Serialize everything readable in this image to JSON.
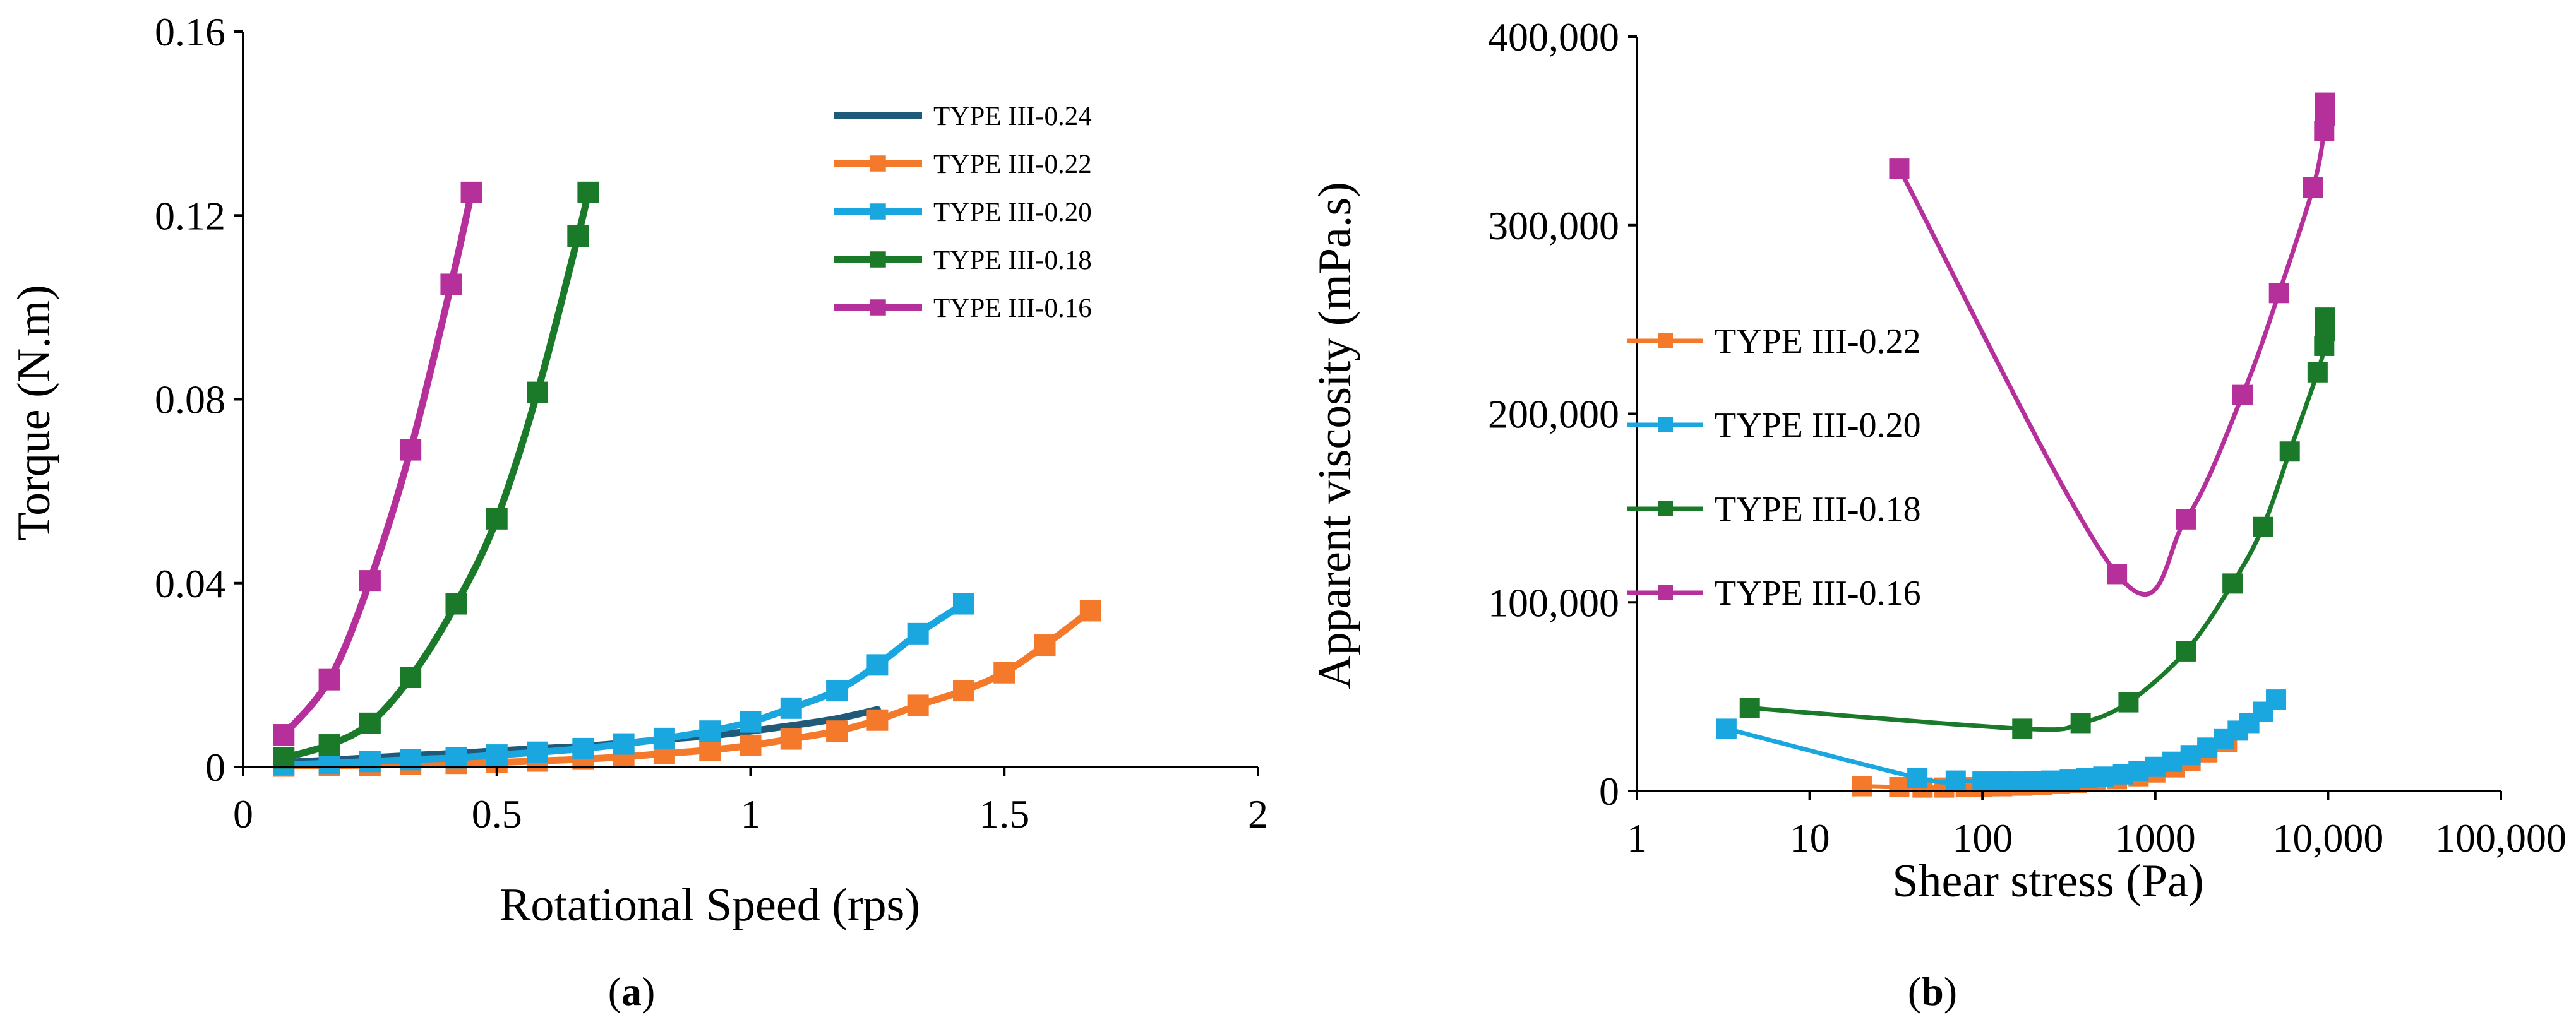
{
  "chart_data": [
    {
      "id": "a",
      "type": "line",
      "caption": "(a)",
      "caption_letter": "a",
      "xlabel": "Rotational Speed (rps)",
      "ylabel": "Torque (N.m)",
      "xlim": [
        0,
        2
      ],
      "ylim": [
        0,
        0.16
      ],
      "xticks": [
        0,
        0.5,
        1,
        1.5,
        2
      ],
      "xtick_labels": [
        "0",
        "0.5",
        "1",
        "1.5",
        "2"
      ],
      "yticks": [
        0,
        0.04,
        0.08,
        0.12,
        0.16
      ],
      "ytick_labels": [
        "0",
        "0.04",
        "0.08",
        "0.12",
        "0.16"
      ],
      "grid": false,
      "legend_position": "top-right",
      "series": [
        {
          "name": "TYPE III-0.24",
          "color": "#1f5a7a",
          "marker": "none",
          "x": [
            0.08,
            0.17,
            0.25,
            0.33,
            0.42,
            0.5,
            0.58,
            0.67,
            0.75,
            0.83,
            0.92,
            1.0,
            1.08,
            1.17,
            1.25
          ],
          "y": [
            0.001,
            0.0015,
            0.002,
            0.0025,
            0.003,
            0.0035,
            0.004,
            0.0045,
            0.0052,
            0.006,
            0.0068,
            0.0078,
            0.009,
            0.0105,
            0.0125
          ]
        },
        {
          "name": "TYPE III-0.22",
          "color": "#f4792a",
          "marker": "square",
          "x": [
            0.08,
            0.17,
            0.25,
            0.33,
            0.42,
            0.5,
            0.58,
            0.67,
            0.75,
            0.83,
            0.92,
            1.0,
            1.08,
            1.17,
            1.25,
            1.33,
            1.42,
            1.5,
            1.58,
            1.67
          ],
          "y": [
            0.0002,
            0.0003,
            0.0004,
            0.0006,
            0.0008,
            0.001,
            0.0013,
            0.0017,
            0.0022,
            0.0029,
            0.0037,
            0.0047,
            0.0061,
            0.0078,
            0.0102,
            0.0134,
            0.0166,
            0.0205,
            0.0265,
            0.034
          ]
        },
        {
          "name": "TYPE III-0.20",
          "color": "#1aa6de",
          "marker": "square",
          "x": [
            0.08,
            0.17,
            0.25,
            0.33,
            0.42,
            0.5,
            0.58,
            0.67,
            0.75,
            0.83,
            0.92,
            1.0,
            1.08,
            1.17,
            1.25,
            1.33,
            1.42
          ],
          "y": [
            0.0005,
            0.0008,
            0.0012,
            0.0016,
            0.002,
            0.0026,
            0.0032,
            0.004,
            0.005,
            0.0062,
            0.0078,
            0.0098,
            0.0128,
            0.0166,
            0.0222,
            0.029,
            0.0355
          ]
        },
        {
          "name": "TYPE III-0.18",
          "color": "#1a7a2a",
          "marker": "square",
          "x": [
            0.08,
            0.17,
            0.25,
            0.33,
            0.42,
            0.5,
            0.58,
            0.66,
            0.68
          ],
          "y": [
            0.002,
            0.0048,
            0.0095,
            0.0195,
            0.0355,
            0.054,
            0.0815,
            0.1155,
            0.125
          ]
        },
        {
          "name": "TYPE III-0.16",
          "color": "#b5309a",
          "marker": "square",
          "x": [
            0.08,
            0.17,
            0.25,
            0.33,
            0.41,
            0.45
          ],
          "y": [
            0.007,
            0.019,
            0.0405,
            0.069,
            0.105,
            0.125
          ]
        }
      ]
    },
    {
      "id": "b",
      "type": "line",
      "caption": "(b)",
      "caption_letter": "b",
      "xlabel": "Shear stress (Pa)",
      "ylabel": "Apparent viscosity (mPa.s)",
      "xscale": "log",
      "xlim": [
        1,
        100000
      ],
      "ylim": [
        0,
        400000
      ],
      "xticks": [
        1,
        10,
        100,
        1000,
        10000,
        100000
      ],
      "xtick_labels": [
        "1",
        "10",
        "100",
        "1000",
        "10,000",
        "100,000"
      ],
      "yticks": [
        0,
        100000,
        200000,
        300000,
        400000
      ],
      "ytick_labels": [
        "0",
        "100,000",
        "200,000",
        "300,000",
        "400,000"
      ],
      "grid": false,
      "legend_position": "center-left",
      "series": [
        {
          "name": "TYPE III-0.22",
          "color": "#f4792a",
          "marker": "square",
          "x": [
            20,
            33,
            45,
            60,
            80,
            100,
            130,
            170,
            220,
            280,
            350,
            450,
            600,
            800,
            1000,
            1300,
            1600,
            2000,
            2600
          ],
          "y": [
            2500,
            2000,
            1800,
            1800,
            2000,
            2200,
            2500,
            2800,
            3200,
            3700,
            4300,
            5000,
            6200,
            7800,
            9800,
            12500,
            16000,
            20500,
            26000
          ]
        },
        {
          "name": "TYPE III-0.20",
          "color": "#1aa6de",
          "marker": "square",
          "x": [
            3.3,
            42,
            70,
            100,
            130,
            160,
            200,
            250,
            320,
            400,
            500,
            650,
            800,
            1000,
            1250,
            1600,
            2000,
            2500,
            3000,
            3500,
            4200,
            5000
          ],
          "y": [
            33000,
            7000,
            5500,
            5000,
            5000,
            5000,
            5200,
            5500,
            6000,
            6700,
            7600,
            8800,
            10500,
            12800,
            15500,
            19000,
            23000,
            27500,
            32000,
            36000,
            42000,
            48500
          ]
        },
        {
          "name": "TYPE III-0.18",
          "color": "#1a7a2a",
          "marker": "square",
          "x": [
            4.5,
            170,
            370,
            700,
            1500,
            2800,
            4200,
            6000,
            8700,
            9500,
            9600,
            9600
          ],
          "y": [
            44000,
            33000,
            36000,
            47000,
            74000,
            110000,
            140000,
            180000,
            222000,
            236000,
            244000,
            251000
          ]
        },
        {
          "name": "TYPE III-0.16",
          "color": "#b5309a",
          "marker": "square",
          "x": [
            33,
            600,
            1500,
            3200,
            5200,
            8200,
            9500,
            9600,
            9600
          ],
          "y": [
            330000,
            115000,
            144000,
            210000,
            264000,
            320000,
            350000,
            358000,
            365000
          ]
        }
      ]
    }
  ]
}
